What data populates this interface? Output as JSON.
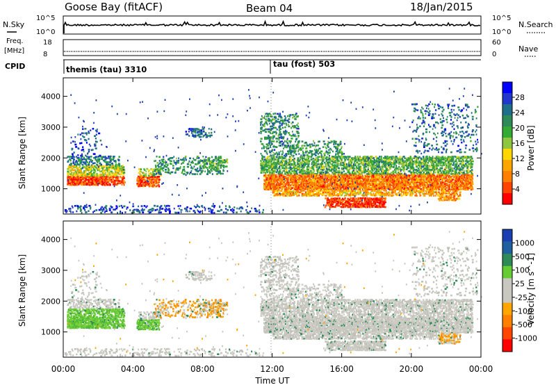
{
  "header": {
    "station": "Goose Bay (fitACF)",
    "beam": "Beam 04",
    "date": "18/Jan/2015"
  },
  "panel_noise": {
    "left_label": "N.Sky",
    "right_label": "N.Search",
    "left_ticks": [
      "10^5",
      "10^0"
    ],
    "right_ticks": [
      "10^5",
      "10^0"
    ]
  },
  "panel_freq": {
    "left_label_line1": "Freq.",
    "left_label_line2": "[MHz]",
    "left_ticks": [
      "18",
      "8"
    ],
    "right_ticks": [
      "60",
      "0"
    ],
    "right_label": "Nave"
  },
  "panel_cpid": {
    "label": "CPID",
    "segments": [
      {
        "text": "themis (tau) 3310",
        "start_hour": 0
      },
      {
        "text": "tau (fost) 503",
        "start_hour": 11.9
      }
    ]
  },
  "power_colorbar": {
    "label": "Power [dB]",
    "ticks": [
      "28",
      "24",
      "20",
      "16",
      "12",
      "8",
      "4"
    ],
    "colors": [
      "#0000ff",
      "#2238cc",
      "#1f6f8b",
      "#2e8b57",
      "#33aa33",
      "#8ec63f",
      "#ffd700",
      "#ffa500",
      "#ff7f00",
      "#ff4500",
      "#ff0000"
    ]
  },
  "velocity_colorbar": {
    "label": "Velocity [m s^-1]",
    "ticks": [
      "1000",
      "500",
      "100",
      "25",
      "-25",
      "-100",
      "-500",
      "-1000"
    ],
    "colors": [
      "#1a3fb0",
      "#2060a0",
      "#2e8b57",
      "#66cc33",
      "#c8c8c0",
      "#c8c8c0",
      "#ffa500",
      "#ff7f00",
      "#ff4500",
      "#ff0000"
    ]
  },
  "xaxis": {
    "label": "Time UT",
    "ticks": [
      "00:00",
      "04:00",
      "08:00",
      "12:00",
      "16:00",
      "20:00",
      "00:00"
    ]
  },
  "chart_data": [
    {
      "type": "heatmap",
      "title": "Power",
      "xlabel": "Time UT",
      "ylabel": "Slant Range [km]",
      "xlim": [
        0,
        24
      ],
      "ylim": [
        180,
        4600
      ],
      "y_ticks": [
        1000,
        2000,
        3000,
        4000
      ],
      "x_ticks": [
        0,
        4,
        8,
        12,
        16,
        20,
        24
      ],
      "zlabel": "Power [dB]",
      "zlim": [
        0,
        32
      ]
    },
    {
      "type": "heatmap",
      "title": "Velocity",
      "xlabel": "Time UT",
      "ylabel": "Slant Range [km]",
      "xlim": [
        0,
        24
      ],
      "ylim": [
        180,
        4600
      ],
      "y_ticks": [
        1000,
        2000,
        3000,
        4000
      ],
      "x_ticks": [
        0,
        4,
        8,
        12,
        16,
        20,
        24
      ],
      "zlabel": "Velocity [m s^-1]",
      "zlim": [
        -1200,
        1200
      ]
    }
  ]
}
